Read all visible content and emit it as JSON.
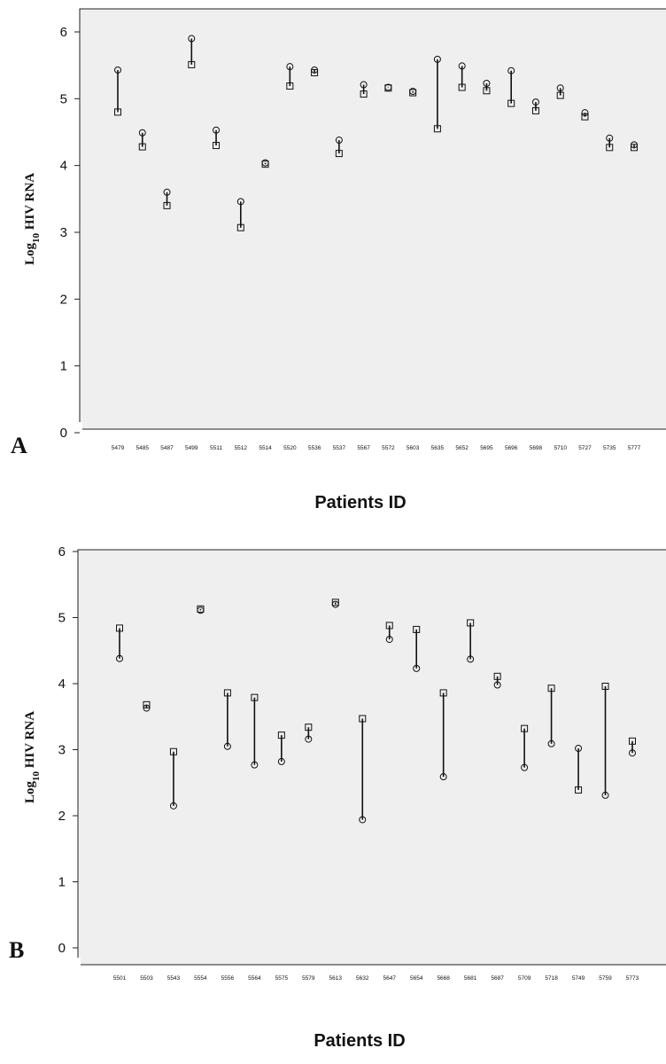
{
  "chart_data": [
    {
      "type": "scatter",
      "panel_label": "A",
      "title": "",
      "xlabel": "Patients ID",
      "ylabel": "Log10 HIV RNA",
      "ylabel_base": "Log",
      "ylabel_sub": "10",
      "ylabel_rest": " HIV RNA",
      "ylim": [
        0,
        6.3
      ],
      "yticks": [
        0,
        1,
        2,
        3,
        4,
        5,
        6
      ],
      "categories": [
        "5479",
        "5485",
        "5487",
        "5499",
        "5511",
        "5512",
        "5514",
        "5520",
        "5536",
        "5537",
        "5567",
        "5572",
        "5603",
        "5635",
        "5652",
        "5695",
        "5696",
        "5698",
        "5710",
        "5727",
        "5735",
        "5777"
      ],
      "series": [
        {
          "marker": "square",
          "values": [
            4.8,
            4.28,
            3.4,
            5.51,
            4.3,
            3.07,
            4.02,
            5.19,
            5.39,
            4.18,
            5.07,
            5.16,
            5.09,
            4.55,
            5.17,
            5.12,
            4.93,
            4.82,
            5.05,
            4.73,
            4.27,
            4.27
          ]
        },
        {
          "marker": "circle",
          "values": [
            5.43,
            4.49,
            3.6,
            5.9,
            4.53,
            3.46,
            4.04,
            5.48,
            5.43,
            4.38,
            5.21,
            5.17,
            5.11,
            5.59,
            5.49,
            5.23,
            5.42,
            4.95,
            5.16,
            4.79,
            4.41,
            4.31
          ]
        }
      ]
    },
    {
      "type": "scatter",
      "panel_label": "B",
      "title": "",
      "xlabel": "Patients ID",
      "ylabel": "Log10 HIV RNA",
      "ylabel_base": "Log",
      "ylabel_sub": "10",
      "ylabel_rest": " HIV RNA",
      "ylim": [
        0,
        6.3
      ],
      "yticks": [
        0,
        1,
        2,
        3,
        4,
        5,
        6
      ],
      "categories": [
        "5501",
        "5503",
        "5543",
        "5554",
        "5556",
        "5564",
        "5575",
        "5579",
        "5613",
        "5632",
        "5647",
        "5654",
        "5668",
        "5681",
        "5687",
        "5709",
        "5718",
        "5749",
        "5759",
        "5773"
      ],
      "series": [
        {
          "marker": "square",
          "values": [
            4.84,
            3.68,
            2.97,
            5.13,
            3.86,
            3.79,
            3.22,
            3.34,
            5.23,
            3.47,
            4.88,
            4.82,
            3.86,
            4.92,
            4.11,
            3.32,
            3.93,
            2.39,
            3.96,
            3.13
          ]
        },
        {
          "marker": "circle",
          "values": [
            4.38,
            3.63,
            2.15,
            5.11,
            3.05,
            2.77,
            2.82,
            3.16,
            5.2,
            1.94,
            4.67,
            4.23,
            2.59,
            4.37,
            3.98,
            2.73,
            3.09,
            3.02,
            2.31,
            2.95
          ]
        }
      ]
    }
  ]
}
